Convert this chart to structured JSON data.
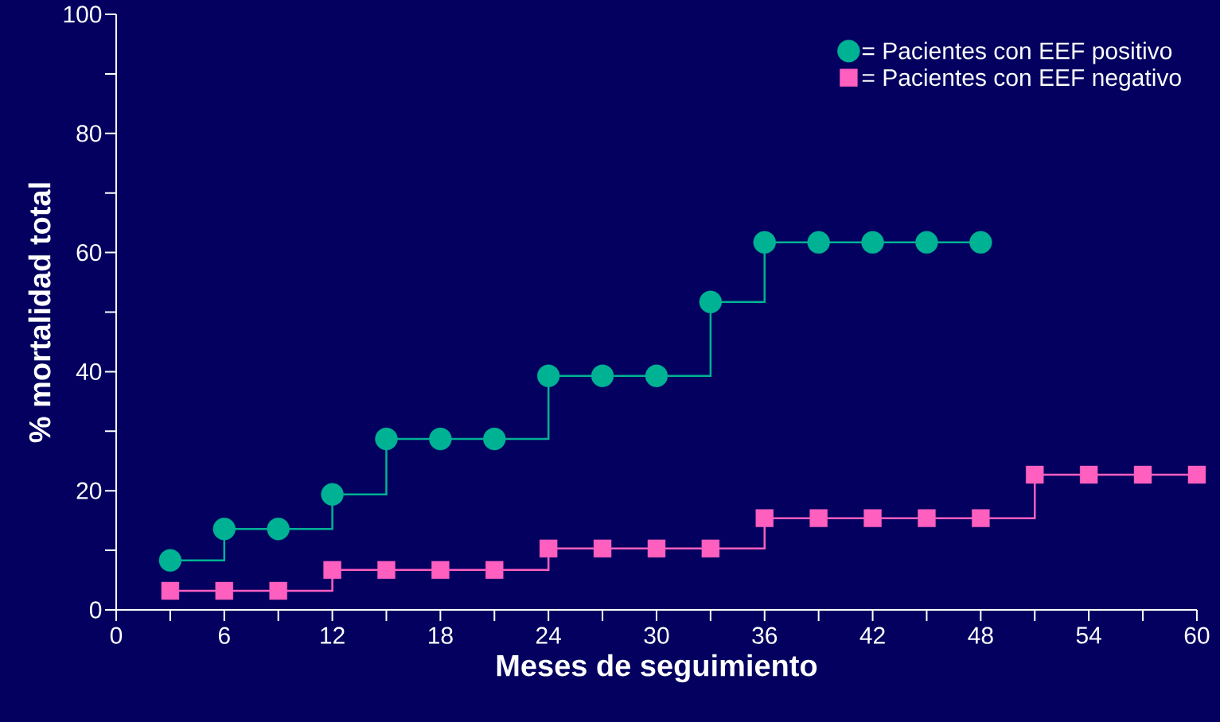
{
  "chart_data": {
    "type": "step",
    "xlabel": "Meses de seguimiento",
    "ylabel": "% mortalidad total",
    "xlim": [
      0,
      60
    ],
    "ylim": [
      0,
      100
    ],
    "xticks": [
      0,
      {
        "value": 3,
        "label": null
      },
      6,
      {
        "value": 9,
        "label": null
      },
      12,
      {
        "value": 15,
        "label": null
      },
      18,
      {
        "value": 21,
        "label": null
      },
      24,
      {
        "value": 27,
        "label": null
      },
      30,
      {
        "value": 33,
        "label": null
      },
      36,
      {
        "value": 39,
        "label": null
      },
      42,
      {
        "value": 45,
        "label": null
      },
      48,
      {
        "value": 51,
        "label": null
      },
      54,
      {
        "value": 57,
        "label": null
      },
      60
    ],
    "yticks": [
      0,
      {
        "value": 10,
        "label": null
      },
      20,
      {
        "value": 30,
        "label": null
      },
      40,
      {
        "value": 50,
        "label": null
      },
      60,
      {
        "value": 70,
        "label": null
      },
      80,
      {
        "value": 90,
        "label": null
      },
      100
    ],
    "legend": "top right",
    "series": [
      {
        "name": "= Pacientes con EEF positivo",
        "color": "#00b294",
        "marker": "circle",
        "x": [
          3,
          6,
          9,
          12,
          15,
          18,
          21,
          24,
          27,
          30,
          33,
          36,
          39,
          42,
          45,
          48
        ],
        "values": [
          8.3,
          13.6,
          13.6,
          19.4,
          28.7,
          28.7,
          28.7,
          39.3,
          39.3,
          39.3,
          51.7,
          61.7,
          61.7,
          61.7,
          61.7,
          61.7
        ]
      },
      {
        "name": "= Pacientes con EEF negativo",
        "color": "#ff5fbf",
        "marker": "square",
        "x": [
          3,
          6,
          9,
          12,
          15,
          18,
          21,
          24,
          27,
          30,
          33,
          36,
          39,
          42,
          45,
          48,
          51,
          54,
          57,
          60
        ],
        "values": [
          3.2,
          3.2,
          3.2,
          6.7,
          6.7,
          6.7,
          6.7,
          10.3,
          10.3,
          10.3,
          10.3,
          15.4,
          15.4,
          15.4,
          15.4,
          15.4,
          22.7,
          22.7,
          22.7,
          22.7
        ]
      }
    ]
  }
}
